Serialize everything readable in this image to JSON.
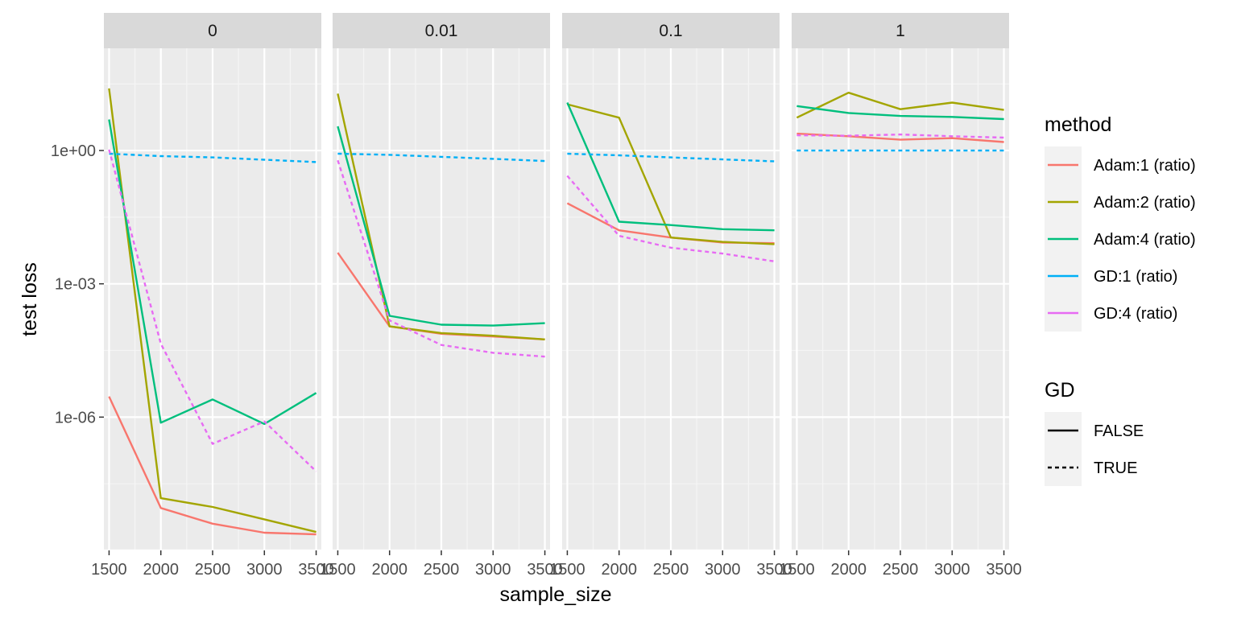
{
  "chart_data": {
    "type": "line",
    "facet_variable": "regularization",
    "facets": [
      {
        "label": "0",
        "series": [
          {
            "method": "Adam:1 (ratio)",
            "gd": "FALSE",
            "values": [
              2.9e-06,
              9e-09,
              4e-09,
              2.5e-09,
              2.3e-09
            ]
          },
          {
            "method": "Adam:2 (ratio)",
            "gd": "FALSE",
            "values": [
              25,
              1.5e-08,
              9.5e-09,
              5e-09,
              2.6e-09
            ]
          },
          {
            "method": "Adam:4 (ratio)",
            "gd": "FALSE",
            "values": [
              5.0,
              7.5e-07,
              2.5e-06,
              7e-07,
              3.5e-06
            ]
          },
          {
            "method": "GD:1 (ratio)",
            "gd": "TRUE",
            "values": [
              0.85,
              0.75,
              0.7,
              0.62,
              0.55
            ]
          },
          {
            "method": "GD:4 (ratio)",
            "gd": "TRUE",
            "values": [
              1.05,
              4.5e-05,
              2.5e-07,
              8e-07,
              6e-08
            ]
          }
        ]
      },
      {
        "label": "0.01",
        "series": [
          {
            "method": "Adam:1 (ratio)",
            "gd": "FALSE",
            "values": [
              0.005,
              0.00011,
              7.5e-05,
              6.5e-05,
              5.6e-05
            ]
          },
          {
            "method": "Adam:2 (ratio)",
            "gd": "FALSE",
            "values": [
              19,
              0.00011,
              7.8e-05,
              6.8e-05,
              5.6e-05
            ]
          },
          {
            "method": "Adam:4 (ratio)",
            "gd": "FALSE",
            "values": [
              3.5,
              0.00019,
              0.00012,
              0.000115,
              0.00013
            ]
          },
          {
            "method": "GD:1 (ratio)",
            "gd": "TRUE",
            "values": [
              0.85,
              0.8,
              0.72,
              0.65,
              0.58
            ]
          },
          {
            "method": "GD:4 (ratio)",
            "gd": "TRUE",
            "values": [
              0.6,
              0.00015,
              4.2e-05,
              2.8e-05,
              2.3e-05
            ]
          }
        ]
      },
      {
        "label": "0.1",
        "series": [
          {
            "method": "Adam:1 (ratio)",
            "gd": "FALSE",
            "values": [
              0.065,
              0.016,
              0.011,
              0.0085,
              0.0082
            ]
          },
          {
            "method": "Adam:2 (ratio)",
            "gd": "FALSE",
            "values": [
              11,
              5.5,
              0.011,
              0.0088,
              0.0078
            ]
          },
          {
            "method": "Adam:4 (ratio)",
            "gd": "FALSE",
            "values": [
              12,
              0.025,
              0.021,
              0.017,
              0.016
            ]
          },
          {
            "method": "GD:1 (ratio)",
            "gd": "TRUE",
            "values": [
              0.85,
              0.78,
              0.7,
              0.63,
              0.57
            ]
          },
          {
            "method": "GD:4 (ratio)",
            "gd": "TRUE",
            "values": [
              0.27,
              0.012,
              0.0065,
              0.0048,
              0.0032
            ]
          }
        ]
      },
      {
        "label": "1",
        "series": [
          {
            "method": "Adam:1 (ratio)",
            "gd": "FALSE",
            "values": [
              2.4,
              2.1,
              1.75,
              1.9,
              1.55
            ]
          },
          {
            "method": "Adam:2 (ratio)",
            "gd": "FALSE",
            "values": [
              5.5,
              20,
              8.5,
              12,
              8.2
            ]
          },
          {
            "method": "Adam:4 (ratio)",
            "gd": "FALSE",
            "values": [
              10,
              7,
              6,
              5.7,
              5.1
            ]
          },
          {
            "method": "GD:1 (ratio)",
            "gd": "TRUE",
            "values": [
              1.0,
              1.0,
              1.0,
              1.0,
              1.0
            ]
          },
          {
            "method": "GD:4 (ratio)",
            "gd": "TRUE",
            "values": [
              2.2,
              2.15,
              2.3,
              2.1,
              1.95
            ]
          }
        ]
      }
    ],
    "x": [
      1500,
      2000,
      2500,
      3000,
      3500
    ],
    "x_ticks": [
      "1500",
      "2000",
      "2500",
      "3000",
      "3500"
    ],
    "xlim": [
      1450,
      3550
    ],
    "xlabel": "sample_size",
    "ylabel": "test loss",
    "y_scale": "log10",
    "ylim": [
      1e-09,
      200
    ],
    "y_ticks": [
      {
        "value": 1,
        "label": "1e+00"
      },
      {
        "value": 0.001,
        "label": "1e-03"
      },
      {
        "value": 1e-06,
        "label": "1e-06"
      }
    ],
    "grid": true,
    "legend_position": "right",
    "legends": {
      "method": {
        "title": "method",
        "entries": [
          {
            "label": "Adam:1 (ratio)",
            "color": "#F8766D"
          },
          {
            "label": "Adam:2 (ratio)",
            "color": "#A3A500"
          },
          {
            "label": "Adam:4 (ratio)",
            "color": "#00BF7D"
          },
          {
            "label": "GD:1 (ratio)",
            "color": "#00B0F6"
          },
          {
            "label": "GD:4 (ratio)",
            "color": "#E76BF3"
          }
        ]
      },
      "gd": {
        "title": "GD",
        "entries": [
          {
            "label": "FALSE",
            "linetype": "solid"
          },
          {
            "label": "TRUE",
            "linetype": "dashed"
          }
        ]
      }
    },
    "colors": {
      "panel_background": "#EBEBEB",
      "strip_background": "#D9D9D9",
      "grid_major": "#FFFFFF",
      "grid_minor": "#F5F5F5"
    }
  }
}
